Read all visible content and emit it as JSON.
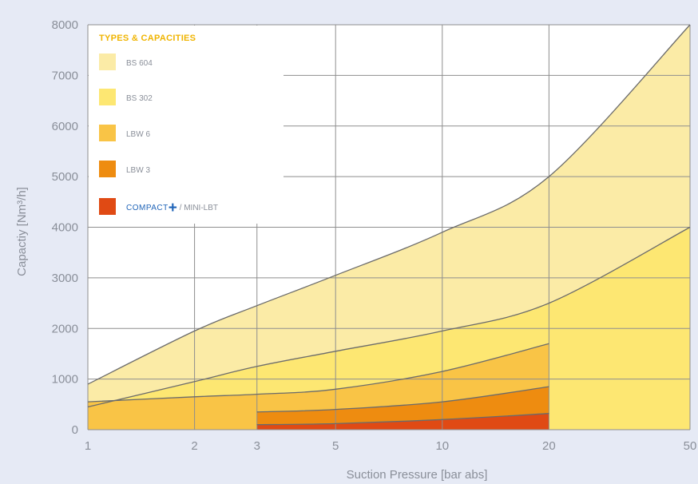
{
  "chart_data": {
    "type": "area",
    "title": "",
    "xlabel": "Suction Pressure [bar abs]",
    "ylabel": "Capactiy [Nm³/h]",
    "x_scale": "log",
    "xlim": [
      1,
      50
    ],
    "ylim": [
      0,
      8000
    ],
    "x_ticks": [
      1,
      2,
      3,
      5,
      10,
      20,
      50
    ],
    "x_tick_labels": [
      "1",
      "2",
      "3",
      "5",
      "10",
      "20",
      "50"
    ],
    "y_ticks": [
      0,
      1000,
      2000,
      3000,
      4000,
      5000,
      6000,
      7000,
      8000
    ],
    "y_tick_labels": [
      "0",
      "1000",
      "2000",
      "3000",
      "4000",
      "5000",
      "6000",
      "7000",
      "8000"
    ],
    "grid": true,
    "legend": {
      "title": "TYPES & CAPACITIES",
      "position": "top-left"
    },
    "series": [
      {
        "name": "BS 604",
        "color": "#fbeba6",
        "x": [
          1,
          2,
          3,
          5,
          10,
          20,
          50
        ],
        "values": [
          900,
          1950,
          2450,
          3050,
          3900,
          5000,
          8000
        ]
      },
      {
        "name": "BS 302",
        "color": "#fde772",
        "x": [
          1,
          2,
          3,
          5,
          10,
          20,
          50
        ],
        "values": [
          450,
          950,
          1250,
          1550,
          1950,
          2500,
          4000
        ]
      },
      {
        "name": "LBW 6",
        "color": "#f9c446",
        "x": [
          1,
          2,
          3,
          5,
          10,
          20
        ],
        "values": [
          550,
          650,
          700,
          800,
          1150,
          1700
        ]
      },
      {
        "name": "LBW 3",
        "color": "#ee8c10",
        "x": [
          3,
          5,
          10,
          20
        ],
        "values": [
          350,
          400,
          550,
          850
        ]
      },
      {
        "name": "COMPACT+ / MINI-LBT",
        "legend_brand": "COMPACT",
        "legend_plus": "+",
        "legend_suffix": " / MINI-LBT",
        "color": "#e04a14",
        "x": [
          3,
          5,
          10,
          20
        ],
        "values": [
          100,
          120,
          200,
          320
        ]
      }
    ]
  }
}
